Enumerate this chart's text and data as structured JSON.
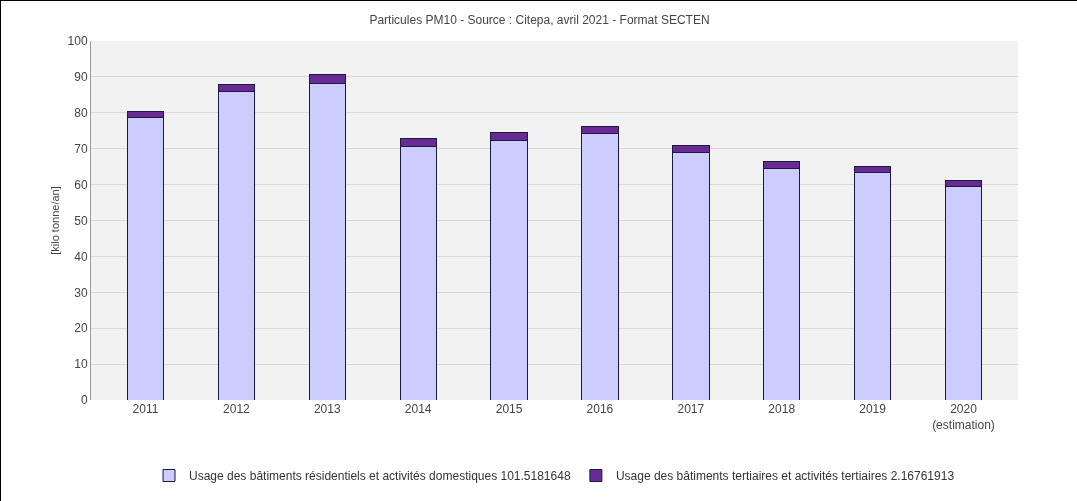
{
  "chart_data": {
    "type": "bar",
    "title": "Particules PM10 - Source : Citepa, avril 2021 - Format SECTEN",
    "ylabel": "[kilo tonne/an]",
    "categories": [
      "2011",
      "2012",
      "2013",
      "2014",
      "2015",
      "2016",
      "2017",
      "2018",
      "2019",
      "2020\n(estimation)"
    ],
    "series": [
      {
        "name": "Usage des bâtiments résidentiels et activités domestiques 101.5181648",
        "color": "#ccccff",
        "values": [
          78.7,
          85.8,
          88.2,
          70.7,
          72.3,
          74.1,
          68.9,
          64.6,
          63.3,
          59.5
        ]
      },
      {
        "name": "Usage des bâtiments tertiaires et activités tertiaires 2.16761913",
        "color": "#6a2a96",
        "values": [
          1.8,
          2.1,
          2.4,
          2.1,
          2.3,
          2.2,
          2.0,
          1.9,
          1.8,
          1.6
        ]
      }
    ],
    "stacked": true,
    "ylim": [
      0,
      100
    ],
    "yticks": [
      0,
      10,
      20,
      30,
      40,
      50,
      60,
      70,
      80,
      90,
      100
    ],
    "grid": "y",
    "legend": "bottom"
  }
}
